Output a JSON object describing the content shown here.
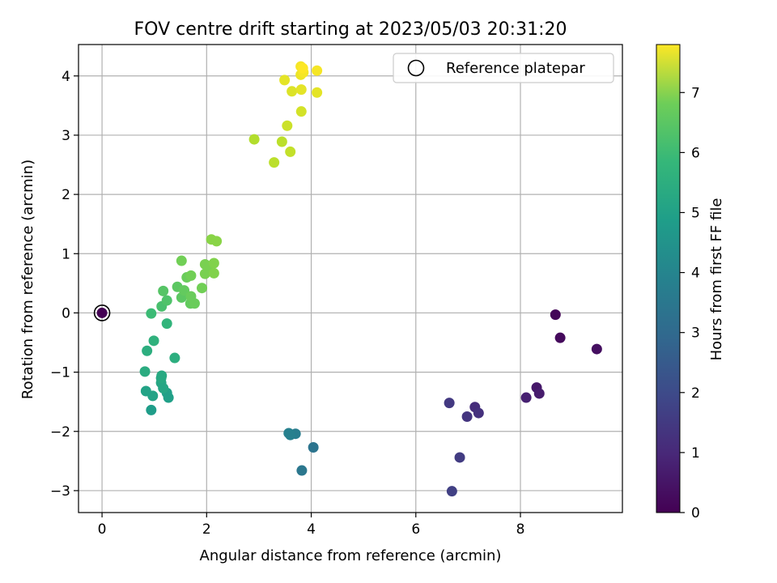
{
  "chart_data": {
    "type": "scatter",
    "title": "FOV centre drift starting at 2023/05/03 20:31:20",
    "xlabel": "Angular distance from reference (arcmin)",
    "ylabel": "Rotation from reference (arcmin)",
    "xlim": [
      -0.45,
      9.95
    ],
    "ylim": [
      -3.37,
      4.53
    ],
    "x_ticks": [
      0,
      2,
      4,
      6,
      8
    ],
    "y_ticks": [
      -3,
      -2,
      -1,
      0,
      1,
      2,
      3,
      4
    ],
    "x_tick_labels": [
      "0",
      "2",
      "4",
      "6",
      "8"
    ],
    "y_tick_labels": [
      "−3",
      "−2",
      "−1",
      "0",
      "1",
      "2",
      "3",
      "4"
    ],
    "grid": true,
    "legend_position": "top-right",
    "legend_label": "Reference platepar",
    "reference_point": {
      "x": 0,
      "y": 0
    },
    "colorbar": {
      "label": "Hours from first FF file",
      "min": 0,
      "max": 7.8,
      "ticks": [
        0,
        1,
        2,
        3,
        4,
        5,
        6,
        7
      ],
      "tick_labels": [
        "0",
        "1",
        "2",
        "3",
        "4",
        "5",
        "6",
        "7"
      ],
      "colormap": "viridis"
    },
    "points": [
      {
        "x": 8.67,
        "y": -0.03,
        "t": 0.1
      },
      {
        "x": 8.76,
        "y": -0.42,
        "t": 0.2
      },
      {
        "x": 9.46,
        "y": -0.61,
        "t": 0.3
      },
      {
        "x": 8.31,
        "y": -1.26,
        "t": 0.5
      },
      {
        "x": 8.36,
        "y": -1.36,
        "t": 0.6
      },
      {
        "x": 8.11,
        "y": -1.43,
        "t": 0.7
      },
      {
        "x": 7.13,
        "y": -1.59,
        "t": 1.0
      },
      {
        "x": 7.2,
        "y": -1.69,
        "t": 1.1
      },
      {
        "x": 6.98,
        "y": -1.75,
        "t": 1.2
      },
      {
        "x": 6.64,
        "y": -1.52,
        "t": 1.3
      },
      {
        "x": 6.84,
        "y": -2.44,
        "t": 1.4
      },
      {
        "x": 6.69,
        "y": -3.01,
        "t": 1.5
      },
      {
        "x": 4.04,
        "y": -2.27,
        "t": 3.0
      },
      {
        "x": 3.82,
        "y": -2.66,
        "t": 3.1
      },
      {
        "x": 3.7,
        "y": -2.04,
        "t": 3.3
      },
      {
        "x": 3.57,
        "y": -2.03,
        "t": 3.4
      },
      {
        "x": 3.6,
        "y": -2.06,
        "t": 3.4
      },
      {
        "x": 0.94,
        "y": -1.64,
        "t": 4.3
      },
      {
        "x": 1.27,
        "y": -1.43,
        "t": 4.4
      },
      {
        "x": 1.24,
        "y": -1.35,
        "t": 4.4
      },
      {
        "x": 0.97,
        "y": -1.4,
        "t": 4.5
      },
      {
        "x": 0.84,
        "y": -1.32,
        "t": 4.5
      },
      {
        "x": 1.17,
        "y": -1.27,
        "t": 4.6
      },
      {
        "x": 1.13,
        "y": -1.18,
        "t": 4.6
      },
      {
        "x": 1.13,
        "y": -1.1,
        "t": 4.7
      },
      {
        "x": 1.14,
        "y": -1.06,
        "t": 4.7
      },
      {
        "x": 0.82,
        "y": -0.99,
        "t": 4.8
      },
      {
        "x": 1.39,
        "y": -0.76,
        "t": 4.9
      },
      {
        "x": 0.86,
        "y": -0.64,
        "t": 4.9
      },
      {
        "x": 0.99,
        "y": -0.47,
        "t": 5.0
      },
      {
        "x": 1.24,
        "y": -0.18,
        "t": 5.1
      },
      {
        "x": 0.94,
        "y": -0.01,
        "t": 5.3
      },
      {
        "x": 1.14,
        "y": 0.11,
        "t": 5.5
      },
      {
        "x": 1.24,
        "y": 0.21,
        "t": 5.6
      },
      {
        "x": 1.17,
        "y": 0.37,
        "t": 5.7
      },
      {
        "x": 1.44,
        "y": 0.44,
        "t": 5.8
      },
      {
        "x": 1.52,
        "y": 0.26,
        "t": 5.8
      },
      {
        "x": 1.57,
        "y": 0.38,
        "t": 5.9
      },
      {
        "x": 1.69,
        "y": 0.16,
        "t": 5.9
      },
      {
        "x": 1.77,
        "y": 0.16,
        "t": 6.0
      },
      {
        "x": 1.7,
        "y": 0.28,
        "t": 6.0
      },
      {
        "x": 1.62,
        "y": 0.6,
        "t": 6.0
      },
      {
        "x": 1.7,
        "y": 0.63,
        "t": 6.1
      },
      {
        "x": 1.52,
        "y": 0.88,
        "t": 6.1
      },
      {
        "x": 1.91,
        "y": 0.42,
        "t": 6.1
      },
      {
        "x": 1.97,
        "y": 0.66,
        "t": 6.2
      },
      {
        "x": 1.97,
        "y": 0.82,
        "t": 6.2
      },
      {
        "x": 2.07,
        "y": 0.79,
        "t": 6.2
      },
      {
        "x": 2.14,
        "y": 0.84,
        "t": 6.3
      },
      {
        "x": 2.14,
        "y": 0.67,
        "t": 6.3
      },
      {
        "x": 2.09,
        "y": 1.24,
        "t": 6.4
      },
      {
        "x": 2.19,
        "y": 1.21,
        "t": 6.4
      },
      {
        "x": 2.91,
        "y": 2.93,
        "t": 6.9
      },
      {
        "x": 3.29,
        "y": 2.54,
        "t": 7.0
      },
      {
        "x": 3.44,
        "y": 2.89,
        "t": 7.0
      },
      {
        "x": 3.6,
        "y": 2.72,
        "t": 7.1
      },
      {
        "x": 3.54,
        "y": 3.16,
        "t": 7.2
      },
      {
        "x": 3.81,
        "y": 3.4,
        "t": 7.3
      },
      {
        "x": 3.63,
        "y": 3.74,
        "t": 7.4
      },
      {
        "x": 3.81,
        "y": 3.77,
        "t": 7.5
      },
      {
        "x": 3.49,
        "y": 3.93,
        "t": 7.5
      },
      {
        "x": 4.11,
        "y": 3.72,
        "t": 7.5
      },
      {
        "x": 3.8,
        "y": 4.02,
        "t": 7.6
      },
      {
        "x": 3.85,
        "y": 4.06,
        "t": 7.7
      },
      {
        "x": 3.8,
        "y": 4.16,
        "t": 7.7
      },
      {
        "x": 4.11,
        "y": 4.09,
        "t": 7.7
      },
      {
        "x": 3.84,
        "y": 4.13,
        "t": 7.8
      }
    ]
  }
}
